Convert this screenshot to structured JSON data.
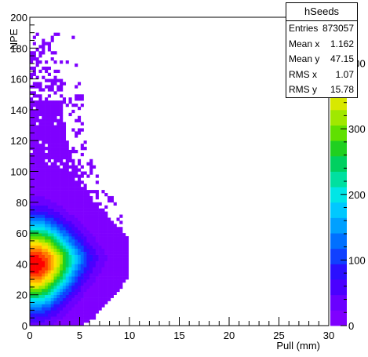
{
  "chart_data": {
    "type": "heatmap",
    "title": "",
    "xlabel": "Pull (mm)",
    "ylabel": "NPE",
    "xlim": [
      0,
      30
    ],
    "ylim": [
      0,
      200
    ],
    "x_ticks": [
      "0",
      "5",
      "10",
      "15",
      "20",
      "25",
      "30"
    ],
    "y_ticks": [
      "0",
      "20",
      "40",
      "60",
      "80",
      "100",
      "120",
      "140",
      "160",
      "180",
      "200"
    ],
    "z_ticks": [
      "0",
      "100",
      "200",
      "300",
      "400"
    ],
    "zlim": [
      0,
      470
    ],
    "bins": {
      "x": 100,
      "y": 100
    },
    "distribution": {
      "peak_x": 0.5,
      "peak_y": 40,
      "peak_count": 470,
      "populated_x_max": 10,
      "populated_y_max": 190,
      "description_note": ""
    },
    "stats_box": {
      "title": "hSeeds",
      "entries_label": "Entries",
      "entries": "873057",
      "mean_x_label": "Mean x",
      "mean_x": "1.162",
      "mean_y_label": "Mean y",
      "mean_y": "47.15",
      "rms_x_label": "RMS x",
      "rms_x": "1.07",
      "rms_y_label": "RMS y",
      "rms_y": "15.78"
    },
    "palette": [
      "#7f00ff",
      "#6a00ff",
      "#4a00ff",
      "#2a10ff",
      "#1040ff",
      "#0070ff",
      "#00a0ff",
      "#00c8ff",
      "#00e6e6",
      "#00e0a0",
      "#00d060",
      "#20d020",
      "#60e000",
      "#a0e800",
      "#d8e800",
      "#ffe000",
      "#ffb000",
      "#ff7a00",
      "#ff4000",
      "#ff0000"
    ]
  }
}
